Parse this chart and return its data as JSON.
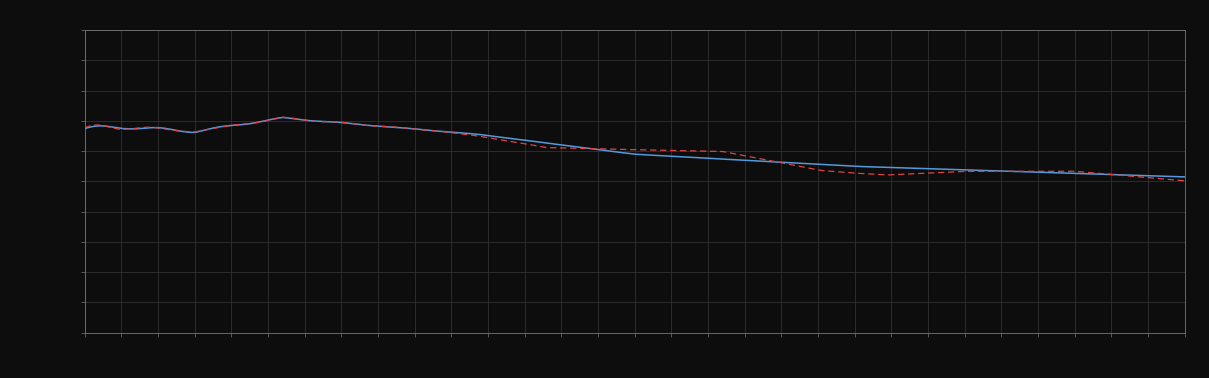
{
  "background_color": "#0d0d0d",
  "plot_bg_color": "#0d0d0d",
  "grid_color": "#383838",
  "line1_color": "#5599dd",
  "line2_color": "#dd4444",
  "figsize": [
    12.09,
    3.78
  ],
  "dpi": 100,
  "xlim": [
    0,
    100
  ],
  "ylim": [
    0,
    10
  ],
  "n_points": 600,
  "spine_color": "#777777",
  "tick_color": "#777777",
  "grid_linewidth": 0.5,
  "line1_linewidth": 1.1,
  "line2_linewidth": 0.9,
  "x_grid_count": 30,
  "y_grid_count": 10
}
